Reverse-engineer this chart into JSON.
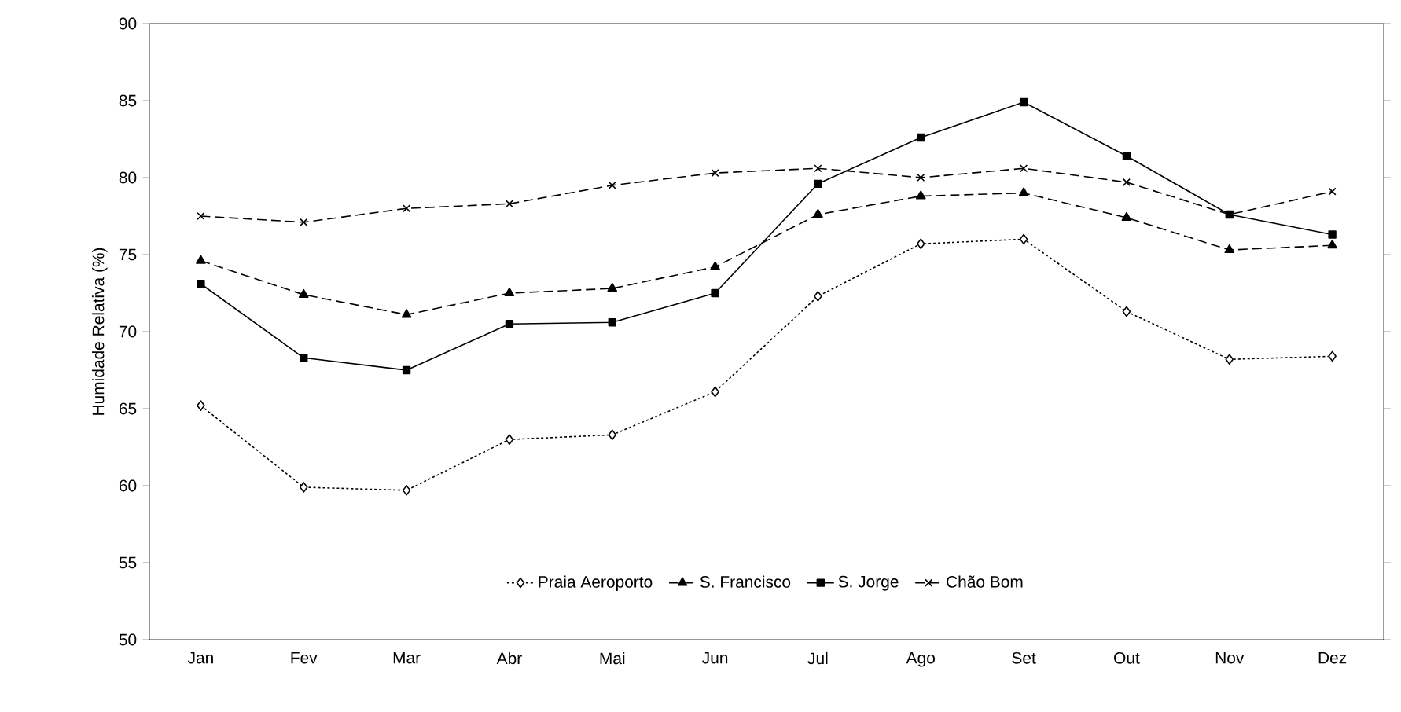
{
  "chart_data": {
    "type": "line",
    "ylabel": "Humidade Relativa (%)",
    "categories": [
      "Jan",
      "Fev",
      "Mar",
      "Abr",
      "Mai",
      "Jun",
      "Jul",
      "Ago",
      "Set",
      "Out",
      "Nov",
      "Dez"
    ],
    "series": [
      {
        "name": "Praia Aeroporto",
        "color": "#000000",
        "marker": "diamond",
        "line_style": "dotted",
        "values": [
          65.2,
          59.9,
          59.7,
          63.0,
          63.3,
          66.1,
          72.3,
          75.7,
          76.0,
          71.3,
          68.2,
          68.4
        ]
      },
      {
        "name": "S. Francisco",
        "color": "#000000",
        "marker": "triangle",
        "line_style": "dashed",
        "values": [
          74.6,
          72.4,
          71.1,
          72.5,
          72.8,
          74.2,
          77.6,
          78.8,
          79.0,
          77.4,
          75.3,
          75.6
        ]
      },
      {
        "name": "S. Jorge",
        "color": "#000000",
        "marker": "square",
        "line_style": "solid",
        "values": [
          73.1,
          68.3,
          67.5,
          70.5,
          70.6,
          72.5,
          79.6,
          82.6,
          84.9,
          81.4,
          77.6,
          76.3
        ]
      },
      {
        "name": "Chão Bom",
        "color": "#000000",
        "marker": "cross",
        "line_style": "dashed",
        "values": [
          77.5,
          77.1,
          78.0,
          78.3,
          79.5,
          80.3,
          80.6,
          80.0,
          80.6,
          79.7,
          77.6,
          79.1
        ]
      }
    ],
    "ylim": [
      50,
      90
    ],
    "yticks": [
      50,
      55,
      60,
      65,
      70,
      75,
      80,
      85,
      90
    ],
    "grid": false,
    "legend": "bottom"
  }
}
